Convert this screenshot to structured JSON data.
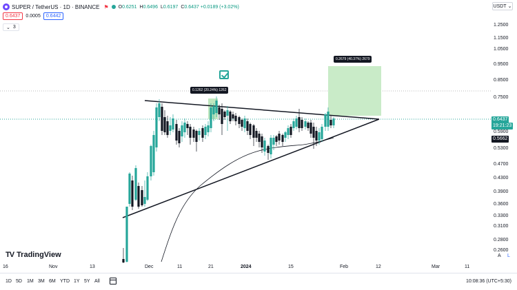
{
  "header": {
    "symbol": "SUPER / TetherUS · 1D · BINANCE",
    "symbol_icon": "flag-icon",
    "ohlc": [
      {
        "label": "O",
        "value": "0.6251"
      },
      {
        "label": "H",
        "value": "0.6496"
      },
      {
        "label": "L",
        "value": "0.6197"
      },
      {
        "label": "C",
        "value": "0.6437 +0.0189 (+3.02%)"
      }
    ],
    "sell_price": "0.6437",
    "spread": "0.0005",
    "buy_price": "0.6442",
    "indicator_count": "3",
    "currency": "USDT"
  },
  "y_axis": [
    "1.2500",
    "1.1500",
    "1.0500",
    "0.9500",
    "0.8500",
    "0.7500",
    "0.5900",
    "0.5300",
    "0.4700",
    "0.4300",
    "0.3900",
    "0.3600",
    "0.3300",
    "0.3100",
    "0.2800",
    "0.2600"
  ],
  "tags": {
    "current_price": "0.6437",
    "countdown": "19:21:23",
    "ma_value": "0.5662"
  },
  "x_axis": [
    "16",
    "Nov",
    "13",
    "Dec",
    "11",
    "21",
    "2024",
    "15",
    "Feb",
    "12",
    "Mar",
    "11"
  ],
  "annotations": {
    "first_target": "0.1262 (20.24%) 1262",
    "second_target": "0.2679 (40.37%) 2679"
  },
  "branding": {
    "logo_text": "TradingView"
  },
  "axis_modes": {
    "auto": "A",
    "log": "L"
  },
  "bottom_bar": {
    "ranges": [
      "1D",
      "5D",
      "1M",
      "3M",
      "6M",
      "YTD",
      "1Y",
      "5Y",
      "All"
    ],
    "clock": "10:08:36 (UTC+5:30)"
  },
  "colors": {
    "up": "#26a69a",
    "down": "#131722",
    "target_fill": "#b9e4b8",
    "accent": "#2962ff"
  },
  "chart_data": {
    "type": "candlestick",
    "pair": "SUPER / TetherUS",
    "interval": "1D",
    "exchange": "BINANCE",
    "last_close": 0.6437,
    "moving_average": 0.5662,
    "y_scale": "log",
    "ylim": [
      0.25,
      1.3
    ]
  }
}
